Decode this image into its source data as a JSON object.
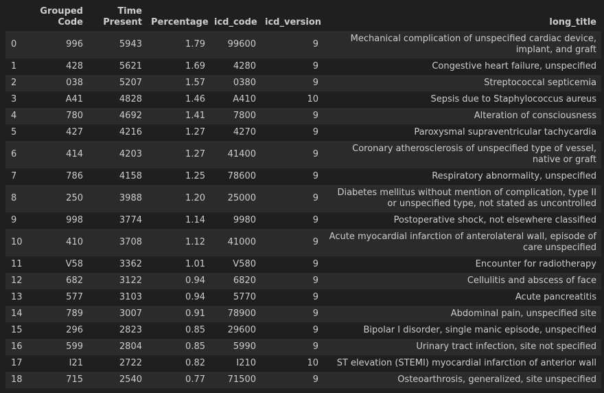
{
  "table": {
    "columns": [
      "",
      "Grouped Code",
      "Time Present",
      "Percentage",
      "icd_code",
      "icd_version",
      "long_title"
    ],
    "rows": [
      [
        "0",
        "996",
        "5943",
        "1.79",
        "99600",
        "9",
        "Mechanical complication of unspecified cardiac device, implant, and graft"
      ],
      [
        "1",
        "428",
        "5621",
        "1.69",
        "4280",
        "9",
        "Congestive heart failure, unspecified"
      ],
      [
        "2",
        "038",
        "5207",
        "1.57",
        "0380",
        "9",
        "Streptococcal septicemia"
      ],
      [
        "3",
        "A41",
        "4828",
        "1.46",
        "A410",
        "10",
        "Sepsis due to Staphylococcus aureus"
      ],
      [
        "4",
        "780",
        "4692",
        "1.41",
        "7800",
        "9",
        "Alteration of consciousness"
      ],
      [
        "5",
        "427",
        "4216",
        "1.27",
        "4270",
        "9",
        "Paroxysmal supraventricular tachycardia"
      ],
      [
        "6",
        "414",
        "4203",
        "1.27",
        "41400",
        "9",
        "Coronary atherosclerosis of unspecified type of vessel, native or graft"
      ],
      [
        "7",
        "786",
        "4158",
        "1.25",
        "78600",
        "9",
        "Respiratory abnormality, unspecified"
      ],
      [
        "8",
        "250",
        "3988",
        "1.20",
        "25000",
        "9",
        "Diabetes mellitus without mention of complication, type II or unspecified type, not stated as uncontrolled"
      ],
      [
        "9",
        "998",
        "3774",
        "1.14",
        "9980",
        "9",
        "Postoperative shock, not elsewhere classified"
      ],
      [
        "10",
        "410",
        "3708",
        "1.12",
        "41000",
        "9",
        "Acute myocardial infarction of anterolateral wall, episode of care unspecified"
      ],
      [
        "11",
        "V58",
        "3362",
        "1.01",
        "V580",
        "9",
        "Encounter for radiotherapy"
      ],
      [
        "12",
        "682",
        "3122",
        "0.94",
        "6820",
        "9",
        "Cellulitis and abscess of face"
      ],
      [
        "13",
        "577",
        "3103",
        "0.94",
        "5770",
        "9",
        "Acute pancreatitis"
      ],
      [
        "14",
        "789",
        "3007",
        "0.91",
        "78900",
        "9",
        "Abdominal pain, unspecified site"
      ],
      [
        "15",
        "296",
        "2823",
        "0.85",
        "29600",
        "9",
        "Bipolar I disorder, single manic episode, unspecified"
      ],
      [
        "16",
        "599",
        "2804",
        "0.85",
        "5990",
        "9",
        "Urinary tract infection, site not specified"
      ],
      [
        "17",
        "I21",
        "2722",
        "0.82",
        "I210",
        "10",
        "ST elevation (STEMI) myocardial infarction of anterior wall"
      ],
      [
        "18",
        "715",
        "2540",
        "0.77",
        "71500",
        "9",
        "Osteoarthrosis, generalized, site unspecified"
      ]
    ]
  }
}
